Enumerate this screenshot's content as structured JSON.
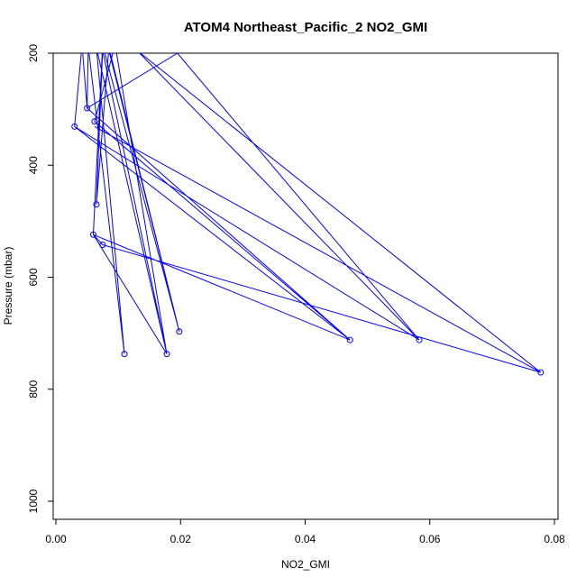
{
  "chart_data": {
    "type": "line",
    "title": "ATOM4 Northeast_Pacific_2 NO2_GMI",
    "xlabel": "NO2_GMI",
    "ylabel": "Pressure (mbar)",
    "xlim": [
      0,
      0.08
    ],
    "ylim": [
      1000,
      200
    ],
    "y_reversed": true,
    "x_ticks": [
      "0.00",
      "0.02",
      "0.04",
      "0.06",
      "0.08"
    ],
    "y_ticks": [
      "200",
      "400",
      "600",
      "800",
      "1000"
    ],
    "grid": false,
    "legend": "none",
    "series": [
      {
        "color": "#0000ff",
        "marker": "open-circle",
        "x": [
          0.0042,
          0.0048,
          0.0052,
          0.0062,
          0.0063,
          0.0065,
          0.0068,
          0.0072,
          0.0075,
          0.008,
          0.0082,
          0.009,
          0.0095,
          0.0098
        ],
        "y": [
          185,
          300,
          188,
          322,
          190,
          470,
          195,
          524,
          180,
          542,
          185,
          331,
          200,
          190
        ]
      }
    ],
    "points": [
      {
        "x": 0.003,
        "y": 331
      },
      {
        "x": 0.005,
        "y": 298
      },
      {
        "x": 0.0062,
        "y": 322
      },
      {
        "x": 0.0065,
        "y": 470
      },
      {
        "x": 0.006,
        "y": 524
      },
      {
        "x": 0.0075,
        "y": 542
      },
      {
        "x": 0.011,
        "y": 737
      },
      {
        "x": 0.0178,
        "y": 737
      },
      {
        "x": 0.0198,
        "y": 697
      },
      {
        "x": 0.0472,
        "y": 712
      },
      {
        "x": 0.0583,
        "y": 712
      },
      {
        "x": 0.0778,
        "y": 770
      }
    ],
    "path": [
      {
        "x": 0.0042,
        "y": 185
      },
      {
        "x": 0.003,
        "y": 331
      },
      {
        "x": 0.0042,
        "y": 185
      },
      {
        "x": 0.005,
        "y": 298
      },
      {
        "x": 0.0052,
        "y": 188
      },
      {
        "x": 0.011,
        "y": 737
      },
      {
        "x": 0.0065,
        "y": 190
      },
      {
        "x": 0.0178,
        "y": 737
      },
      {
        "x": 0.006,
        "y": 524
      },
      {
        "x": 0.0075,
        "y": 185
      },
      {
        "x": 0.0198,
        "y": 697
      },
      {
        "x": 0.0082,
        "y": 182
      },
      {
        "x": 0.0198,
        "y": 697
      },
      {
        "x": 0.0085,
        "y": 190
      },
      {
        "x": 0.0065,
        "y": 470
      },
      {
        "x": 0.0075,
        "y": 195
      },
      {
        "x": 0.0178,
        "y": 737
      },
      {
        "x": 0.0095,
        "y": 185
      },
      {
        "x": 0.0062,
        "y": 322
      },
      {
        "x": 0.0472,
        "y": 712
      },
      {
        "x": 0.003,
        "y": 331
      },
      {
        "x": 0.0583,
        "y": 712
      },
      {
        "x": 0.013,
        "y": 195
      },
      {
        "x": 0.0778,
        "y": 770
      },
      {
        "x": 0.0062,
        "y": 331
      },
      {
        "x": 0.0778,
        "y": 770
      },
      {
        "x": 0.0075,
        "y": 542
      },
      {
        "x": 0.006,
        "y": 524
      },
      {
        "x": 0.0472,
        "y": 712
      },
      {
        "x": 0.005,
        "y": 298
      },
      {
        "x": 0.0195,
        "y": 200
      },
      {
        "x": 0.0583,
        "y": 712
      }
    ]
  }
}
